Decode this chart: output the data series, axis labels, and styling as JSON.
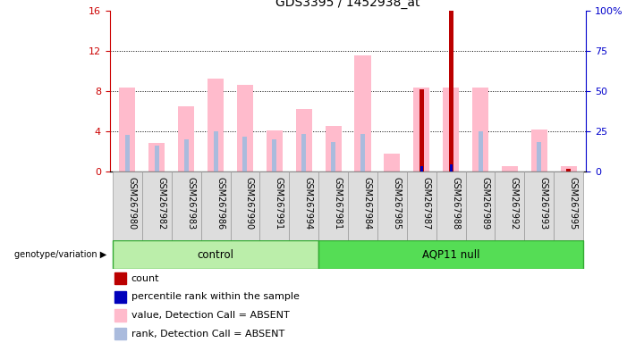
{
  "title": "GDS3395 / 1452938_at",
  "samples": [
    "GSM267980",
    "GSM267982",
    "GSM267983",
    "GSM267986",
    "GSM267990",
    "GSM267991",
    "GSM267994",
    "GSM267981",
    "GSM267984",
    "GSM267985",
    "GSM267987",
    "GSM267988",
    "GSM267989",
    "GSM267992",
    "GSM267993",
    "GSM267995"
  ],
  "n_control": 7,
  "n_aqp": 9,
  "pink_values": [
    8.3,
    2.8,
    6.5,
    9.2,
    8.6,
    4.1,
    6.2,
    4.5,
    11.5,
    1.8,
    8.3,
    8.3,
    8.3,
    0.5,
    4.2,
    0.5
  ],
  "blue_rank_values": [
    3.6,
    2.6,
    3.2,
    4.0,
    3.5,
    3.2,
    3.7,
    2.9,
    3.7,
    0.0,
    3.5,
    3.9,
    4.0,
    0.0,
    2.9,
    0.0
  ],
  "red_count_values": [
    0,
    0,
    0,
    0,
    0,
    0,
    0,
    0,
    0,
    0,
    8.2,
    16.0,
    0,
    0,
    0,
    0.3
  ],
  "blue_pct_values": [
    0,
    0,
    0,
    0,
    0,
    0,
    0,
    0,
    0,
    0,
    3.5,
    4.5,
    0,
    0,
    0,
    0
  ],
  "ylim_left": [
    0,
    16
  ],
  "ylim_right": [
    0,
    100
  ],
  "yticks_left": [
    0,
    4,
    8,
    12,
    16
  ],
  "ytick_labels_left": [
    "0",
    "4",
    "8",
    "12",
    "16"
  ],
  "yticks_right": [
    0,
    25,
    50,
    75,
    100
  ],
  "ytick_labels_right": [
    "0",
    "25",
    "50",
    "75",
    "100%"
  ],
  "pink_color": "#ffbbcc",
  "blue_rank_color": "#aabbdd",
  "red_color": "#bb0000",
  "blue_pct_color": "#0000bb",
  "bar_width": 0.55,
  "legend_items": [
    {
      "color": "#bb0000",
      "label": "count"
    },
    {
      "color": "#0000bb",
      "label": "percentile rank within the sample"
    },
    {
      "color": "#ffbbcc",
      "label": "value, Detection Call = ABSENT"
    },
    {
      "color": "#aabbdd",
      "label": "rank, Detection Call = ABSENT"
    }
  ],
  "group_label": "genotype/variation",
  "ctrl_label": "control",
  "aqp_label": "AQP11 null",
  "ctrl_color": "#bbeeaa",
  "aqp_color": "#55dd55",
  "sample_bg": "#dddddd",
  "grid_lines": [
    4,
    8,
    12
  ]
}
